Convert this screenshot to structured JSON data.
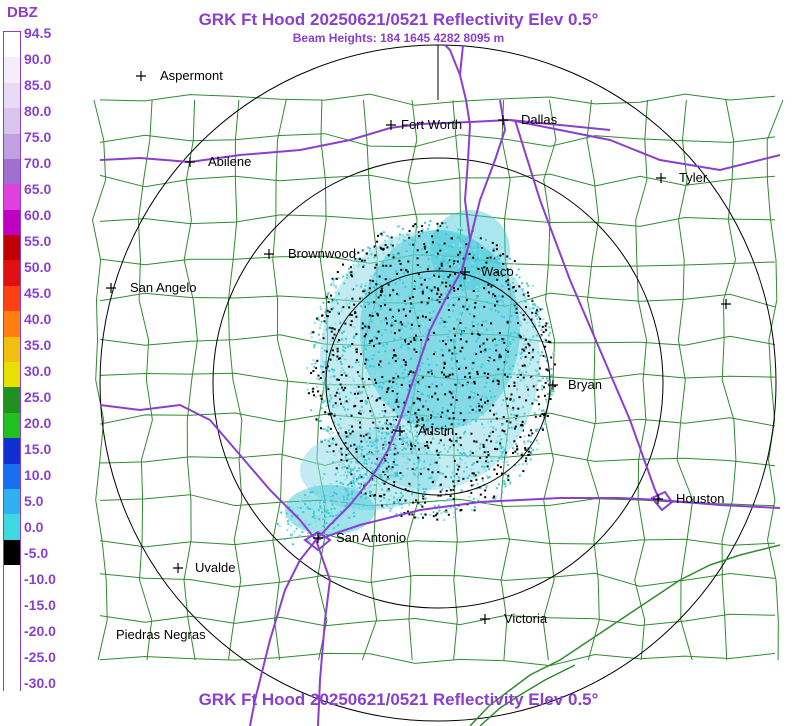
{
  "header": {
    "title": "GRK Ft Hood 20250621/0521 Reflectivity Elev 0.5°",
    "beam_heights": "Beam Heights: 184 1645 4282 8095 m"
  },
  "footer": {
    "title": "GRK Ft Hood 20250621/0521 Reflectivity Elev 0.5°"
  },
  "legend": {
    "unit": "DBZ",
    "labels": [
      "94.5",
      "90.0",
      "85.0",
      "80.0",
      "75.0",
      "70.0",
      "65.0",
      "60.0",
      "55.0",
      "50.0",
      "45.0",
      "40.0",
      "35.0",
      "30.0",
      "25.0",
      "20.0",
      "15.0",
      "10.0",
      "5.0",
      "0.0",
      "-5.0",
      "-10.0",
      "-15.0",
      "-20.0",
      "-25.0",
      "-30.0"
    ]
  },
  "colors": {
    "title": "#8a3fcf",
    "roads": "#8a3fcf",
    "counties": "#2e8b2e",
    "range_rings": "#000000",
    "echo_cyan": "#40c8d8",
    "echo_light": "#90dce8",
    "echo_dark": "#000000"
  },
  "cities": [
    {
      "name": "Aspermont"
    },
    {
      "name": "Fort Worth"
    },
    {
      "name": "Dallas"
    },
    {
      "name": "Abilene"
    },
    {
      "name": "Tyler"
    },
    {
      "name": "Brownwood"
    },
    {
      "name": "Waco"
    },
    {
      "name": "San Angelo"
    },
    {
      "name": "Bryan"
    },
    {
      "name": "Austin"
    },
    {
      "name": "Houston"
    },
    {
      "name": "San Antonio"
    },
    {
      "name": "Uvalde"
    },
    {
      "name": "Victoria"
    },
    {
      "name": "Piedras Negras"
    }
  ]
}
